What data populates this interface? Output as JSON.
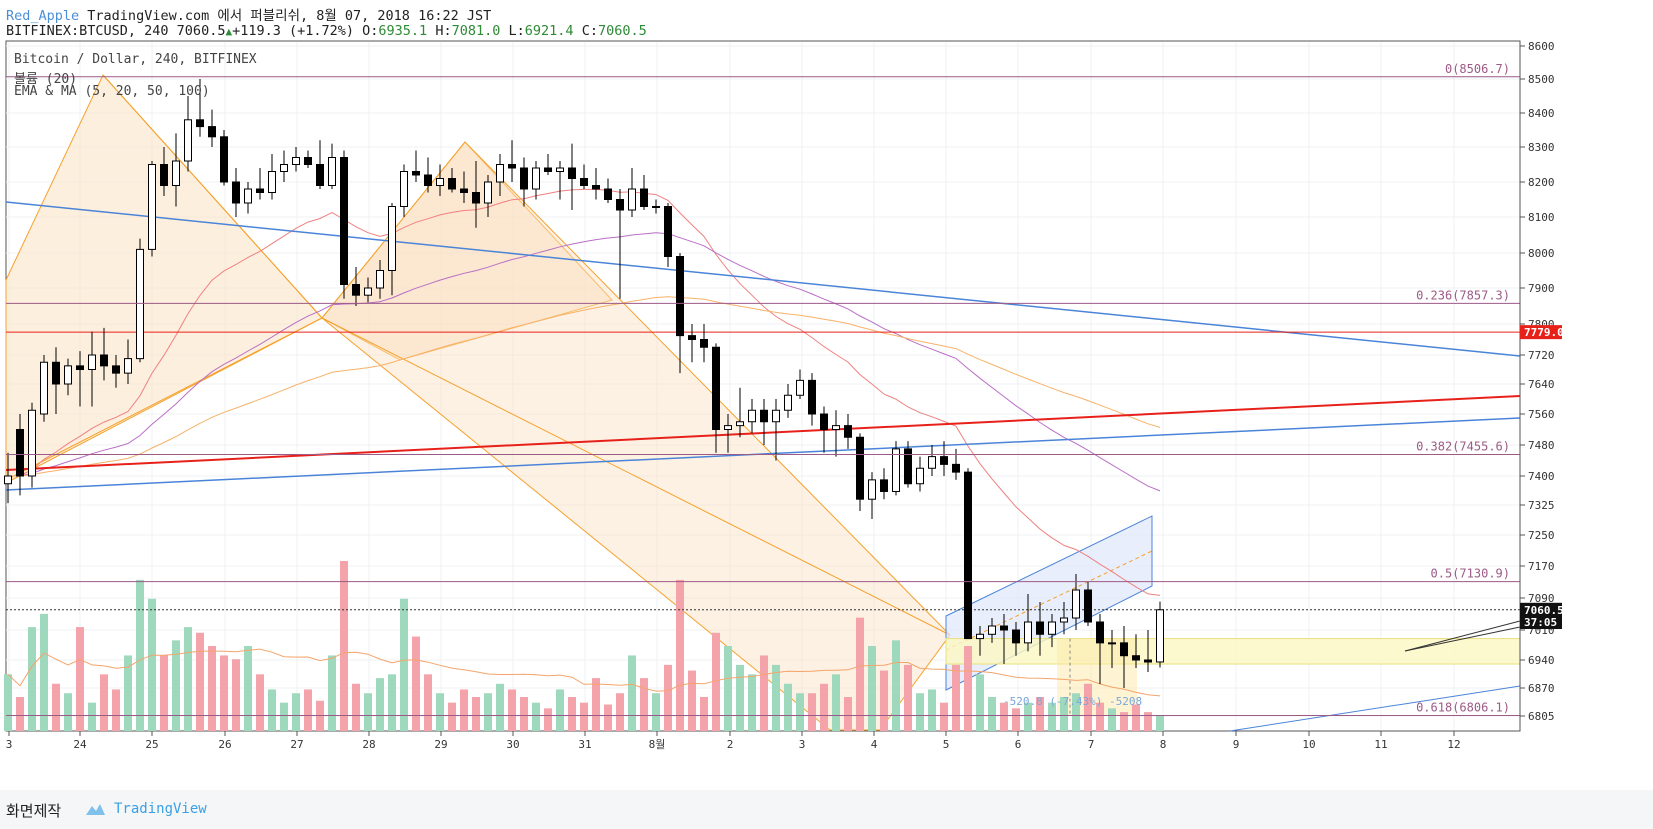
{
  "header": {
    "author": "Red_Apple",
    "published": "TradingView.com 에서 퍼블리쉬, 8월 07, 2018 16:22 JST",
    "symbol_line": "BITFINEX:BTCUSD, 240 7060.5",
    "change": "+119.3 (+1.72%)",
    "o_label": "O:",
    "o": "6935.1",
    "h_label": "H:",
    "h": "7081.0",
    "l_label": "L:",
    "l": "6921.4",
    "c_label": "C:",
    "c": "7060.5"
  },
  "legend": {
    "line1": "Bitcoin / Dollar, 240, BITFINEX",
    "line2": "볼륨 (20)",
    "line3": "EMA & MA (5, 20, 50, 100)"
  },
  "footer": {
    "label": "화면제작",
    "brand": "TradingView"
  },
  "colors": {
    "up": "#ffffff",
    "down": "#000000",
    "vol_up": "#9fd9bd",
    "vol_down": "#f4a3ab",
    "fib": "#9c5a86",
    "trend_blue": "#4a84d8",
    "trend_red": "#e8201a",
    "harmonic": "#f5a12b",
    "ema_red": "#f08080",
    "ema_purple": "#b96fc6",
    "ema_orange": "#f7b26a"
  },
  "chart_data": {
    "type": "candlestick",
    "symbol": "BITFINEX:BTCUSD",
    "interval": "240",
    "y_ticks": [
      8600,
      8500,
      8400,
      8300,
      8200,
      8100,
      8000,
      7900,
      7800,
      7720,
      7640,
      7560,
      7480,
      7400,
      7325,
      7250,
      7170,
      7090,
      7010,
      6940,
      6870,
      6805
    ],
    "x_ticks": [
      "3",
      "24",
      "25",
      "26",
      "27",
      "28",
      "29",
      "30",
      "31",
      "8월",
      "2",
      "3",
      "4",
      "5",
      "6",
      "7",
      "8",
      "9",
      "10",
      "11",
      "12"
    ],
    "price_labels": {
      "last": "7060.5",
      "countdown": "37:05",
      "red_line": "7779.0"
    },
    "fib_levels": [
      {
        "label": "0(8506.7)",
        "price": 8506.7
      },
      {
        "label": "0.236(7857.3)",
        "price": 7857.3
      },
      {
        "label": "0.382(7455.6)",
        "price": 7455.6
      },
      {
        "label": "0.5(7130.9)",
        "price": 7130.9
      },
      {
        "label": "0.618(6806.1)",
        "price": 6806.1
      }
    ],
    "red_hline": 7779,
    "range_measure": "-520.8 (-7.43%) -5208",
    "candles": [
      {
        "o": 7380,
        "h": 7460,
        "l": 7330,
        "c": 7400
      },
      {
        "o": 7520,
        "h": 7560,
        "l": 7350,
        "c": 7400
      },
      {
        "o": 7400,
        "h": 7590,
        "l": 7370,
        "c": 7570
      },
      {
        "o": 7560,
        "h": 7720,
        "l": 7540,
        "c": 7700
      },
      {
        "o": 7700,
        "h": 7740,
        "l": 7560,
        "c": 7640
      },
      {
        "o": 7640,
        "h": 7710,
        "l": 7610,
        "c": 7690
      },
      {
        "o": 7690,
        "h": 7730,
        "l": 7580,
        "c": 7680
      },
      {
        "o": 7680,
        "h": 7780,
        "l": 7580,
        "c": 7720
      },
      {
        "o": 7720,
        "h": 7790,
        "l": 7650,
        "c": 7690
      },
      {
        "o": 7690,
        "h": 7720,
        "l": 7630,
        "c": 7670
      },
      {
        "o": 7670,
        "h": 7760,
        "l": 7640,
        "c": 7710
      },
      {
        "o": 7710,
        "h": 8040,
        "l": 7700,
        "c": 8010
      },
      {
        "o": 8010,
        "h": 8260,
        "l": 7990,
        "c": 8250
      },
      {
        "o": 8250,
        "h": 8300,
        "l": 8160,
        "c": 8190
      },
      {
        "o": 8190,
        "h": 8340,
        "l": 8130,
        "c": 8260
      },
      {
        "o": 8260,
        "h": 8450,
        "l": 8230,
        "c": 8380
      },
      {
        "o": 8380,
        "h": 8500,
        "l": 8330,
        "c": 8360
      },
      {
        "o": 8360,
        "h": 8410,
        "l": 8300,
        "c": 8330
      },
      {
        "o": 8330,
        "h": 8350,
        "l": 8190,
        "c": 8200
      },
      {
        "o": 8200,
        "h": 8240,
        "l": 8100,
        "c": 8140
      },
      {
        "o": 8140,
        "h": 8200,
        "l": 8110,
        "c": 8180
      },
      {
        "o": 8180,
        "h": 8240,
        "l": 8150,
        "c": 8170
      },
      {
        "o": 8170,
        "h": 8280,
        "l": 8150,
        "c": 8230
      },
      {
        "o": 8230,
        "h": 8290,
        "l": 8200,
        "c": 8250
      },
      {
        "o": 8250,
        "h": 8300,
        "l": 8230,
        "c": 8270
      },
      {
        "o": 8270,
        "h": 8290,
        "l": 8240,
        "c": 8250
      },
      {
        "o": 8250,
        "h": 8320,
        "l": 8180,
        "c": 8190
      },
      {
        "o": 8190,
        "h": 8310,
        "l": 8180,
        "c": 8270
      },
      {
        "o": 8270,
        "h": 8290,
        "l": 7870,
        "c": 7910
      },
      {
        "o": 7910,
        "h": 7960,
        "l": 7850,
        "c": 7880
      },
      {
        "o": 7880,
        "h": 7930,
        "l": 7860,
        "c": 7900
      },
      {
        "o": 7900,
        "h": 7980,
        "l": 7870,
        "c": 7950
      },
      {
        "o": 7950,
        "h": 8140,
        "l": 7880,
        "c": 8130
      },
      {
        "o": 8130,
        "h": 8250,
        "l": 8100,
        "c": 8230
      },
      {
        "o": 8230,
        "h": 8290,
        "l": 8200,
        "c": 8220
      },
      {
        "o": 8220,
        "h": 8270,
        "l": 8170,
        "c": 8190
      },
      {
        "o": 8190,
        "h": 8250,
        "l": 8160,
        "c": 8210
      },
      {
        "o": 8210,
        "h": 8240,
        "l": 8170,
        "c": 8180
      },
      {
        "o": 8180,
        "h": 8230,
        "l": 8140,
        "c": 8170
      },
      {
        "o": 8170,
        "h": 8260,
        "l": 8070,
        "c": 8140
      },
      {
        "o": 8140,
        "h": 8220,
        "l": 8100,
        "c": 8200
      },
      {
        "o": 8200,
        "h": 8280,
        "l": 8160,
        "c": 8250
      },
      {
        "o": 8250,
        "h": 8320,
        "l": 8200,
        "c": 8240
      },
      {
        "o": 8240,
        "h": 8270,
        "l": 8130,
        "c": 8180
      },
      {
        "o": 8180,
        "h": 8260,
        "l": 8150,
        "c": 8240
      },
      {
        "o": 8240,
        "h": 8280,
        "l": 8220,
        "c": 8230
      },
      {
        "o": 8230,
        "h": 8260,
        "l": 8150,
        "c": 8240
      },
      {
        "o": 8240,
        "h": 8310,
        "l": 8120,
        "c": 8210
      },
      {
        "o": 8210,
        "h": 8250,
        "l": 8180,
        "c": 8190
      },
      {
        "o": 8190,
        "h": 8240,
        "l": 8150,
        "c": 8180
      },
      {
        "o": 8180,
        "h": 8210,
        "l": 8140,
        "c": 8150
      },
      {
        "o": 8150,
        "h": 8180,
        "l": 7870,
        "c": 8120
      },
      {
        "o": 8120,
        "h": 8240,
        "l": 8100,
        "c": 8180
      },
      {
        "o": 8180,
        "h": 8220,
        "l": 8120,
        "c": 8130
      },
      {
        "o": 8130,
        "h": 8150,
        "l": 8110,
        "c": 8130
      },
      {
        "o": 8130,
        "h": 8140,
        "l": 7960,
        "c": 7990
      },
      {
        "o": 7990,
        "h": 8000,
        "l": 7670,
        "c": 7770
      },
      {
        "o": 7770,
        "h": 7800,
        "l": 7700,
        "c": 7760
      },
      {
        "o": 7760,
        "h": 7800,
        "l": 7700,
        "c": 7740
      },
      {
        "o": 7740,
        "h": 7750,
        "l": 7460,
        "c": 7520
      },
      {
        "o": 7520,
        "h": 7560,
        "l": 7460,
        "c": 7530
      },
      {
        "o": 7530,
        "h": 7630,
        "l": 7500,
        "c": 7540
      },
      {
        "o": 7540,
        "h": 7600,
        "l": 7510,
        "c": 7570
      },
      {
        "o": 7570,
        "h": 7600,
        "l": 7480,
        "c": 7540
      },
      {
        "o": 7540,
        "h": 7600,
        "l": 7440,
        "c": 7570
      },
      {
        "o": 7570,
        "h": 7640,
        "l": 7550,
        "c": 7610
      },
      {
        "o": 7610,
        "h": 7680,
        "l": 7600,
        "c": 7650
      },
      {
        "o": 7650,
        "h": 7670,
        "l": 7530,
        "c": 7560
      },
      {
        "o": 7560,
        "h": 7580,
        "l": 7460,
        "c": 7520
      },
      {
        "o": 7520,
        "h": 7570,
        "l": 7450,
        "c": 7530
      },
      {
        "o": 7530,
        "h": 7560,
        "l": 7470,
        "c": 7500
      },
      {
        "o": 7500,
        "h": 7510,
        "l": 7310,
        "c": 7340
      },
      {
        "o": 7340,
        "h": 7410,
        "l": 7290,
        "c": 7390
      },
      {
        "o": 7390,
        "h": 7420,
        "l": 7340,
        "c": 7360
      },
      {
        "o": 7360,
        "h": 7490,
        "l": 7350,
        "c": 7470
      },
      {
        "o": 7470,
        "h": 7490,
        "l": 7370,
        "c": 7380
      },
      {
        "o": 7380,
        "h": 7450,
        "l": 7360,
        "c": 7420
      },
      {
        "o": 7420,
        "h": 7480,
        "l": 7400,
        "c": 7450
      },
      {
        "o": 7450,
        "h": 7490,
        "l": 7400,
        "c": 7430
      },
      {
        "o": 7430,
        "h": 7470,
        "l": 7390,
        "c": 7410
      },
      {
        "o": 7410,
        "h": 7420,
        "l": 6990,
        "c": 6990
      },
      {
        "o": 6990,
        "h": 7020,
        "l": 6950,
        "c": 7000
      },
      {
        "o": 7000,
        "h": 7040,
        "l": 6980,
        "c": 7020
      },
      {
        "o": 7020,
        "h": 7050,
        "l": 6930,
        "c": 7010
      },
      {
        "o": 7010,
        "h": 7030,
        "l": 6950,
        "c": 6980
      },
      {
        "o": 6980,
        "h": 7100,
        "l": 6960,
        "c": 7030
      },
      {
        "o": 7030,
        "h": 7080,
        "l": 6950,
        "c": 7000
      },
      {
        "o": 7000,
        "h": 7050,
        "l": 6970,
        "c": 7030
      },
      {
        "o": 7030,
        "h": 7080,
        "l": 7000,
        "c": 7040
      },
      {
        "o": 7040,
        "h": 7150,
        "l": 7010,
        "c": 7110
      },
      {
        "o": 7110,
        "h": 7130,
        "l": 7020,
        "c": 7030
      },
      {
        "o": 7030,
        "h": 7050,
        "l": 6880,
        "c": 6980
      },
      {
        "o": 6980,
        "h": 7010,
        "l": 6920,
        "c": 6980
      },
      {
        "o": 6980,
        "h": 7020,
        "l": 6870,
        "c": 6950
      },
      {
        "o": 6950,
        "h": 7000,
        "l": 6920,
        "c": 6940
      },
      {
        "o": 6940,
        "h": 7010,
        "l": 6910,
        "c": 6935
      },
      {
        "o": 6935.1,
        "h": 7081,
        "l": 6921.4,
        "c": 7060.5
      }
    ],
    "volume": [
      30,
      18,
      55,
      62,
      25,
      20,
      55,
      15,
      30,
      22,
      40,
      80,
      70,
      40,
      48,
      55,
      52,
      45,
      40,
      38,
      45,
      30,
      22,
      15,
      20,
      22,
      16,
      40,
      90,
      25,
      20,
      28,
      30,
      70,
      50,
      30,
      20,
      15,
      22,
      18,
      20,
      25,
      22,
      18,
      15,
      12,
      22,
      18,
      15,
      28,
      14,
      20,
      40,
      28,
      20,
      35,
      80,
      32,
      18,
      52,
      45,
      35,
      30,
      40,
      35,
      25,
      20,
      20,
      25,
      30,
      18,
      60,
      45,
      32,
      48,
      35,
      20,
      22,
      15,
      35,
      45,
      30,
      18,
      15,
      12,
      15,
      18,
      15,
      18,
      20,
      25,
      15,
      12,
      10,
      14,
      10,
      8
    ]
  }
}
